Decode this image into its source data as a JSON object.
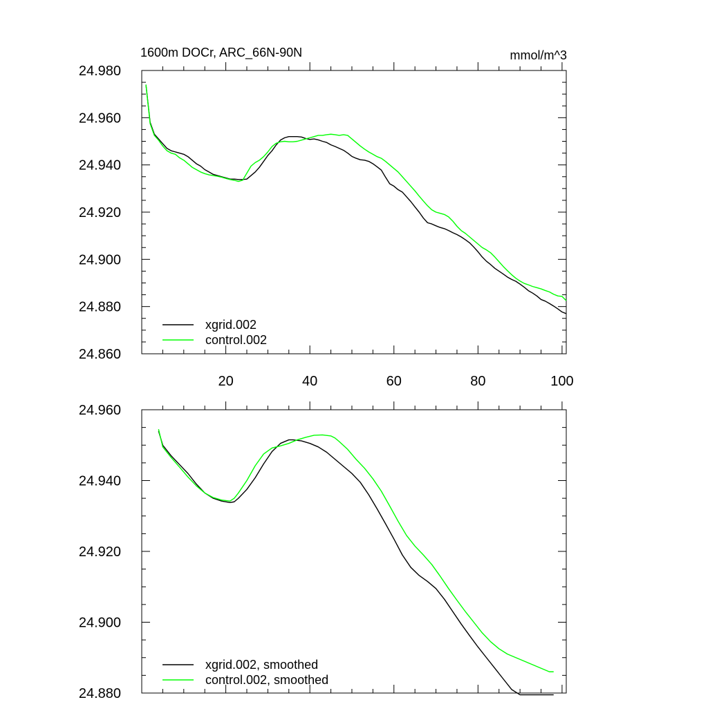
{
  "chart_data": [
    {
      "type": "line",
      "title": "1600m DOCr, ARC_66N-90N",
      "units": "mmol/m^3",
      "xlim": [
        0,
        101
      ],
      "ylim": [
        24.86,
        24.98
      ],
      "x_ticks": [
        20,
        40,
        60,
        80,
        100
      ],
      "y_ticks": [
        "24.860",
        "24.880",
        "24.900",
        "24.920",
        "24.940",
        "24.960",
        "24.980"
      ],
      "legend_position": "bottom-left",
      "series": [
        {
          "name": "xgrid.002",
          "color": "#000000",
          "x": [
            1,
            2,
            3,
            4,
            5,
            6,
            7,
            8,
            9,
            10,
            11,
            12,
            13,
            14,
            15,
            16,
            17,
            18,
            19,
            20,
            21,
            22,
            23,
            24,
            25,
            26,
            27,
            28,
            29,
            30,
            31,
            32,
            33,
            34,
            35,
            36,
            37,
            38,
            39,
            40,
            41,
            42,
            43,
            44,
            45,
            46,
            47,
            48,
            49,
            50,
            51,
            52,
            53,
            54,
            55,
            56,
            57,
            58,
            59,
            60,
            61,
            62,
            63,
            64,
            65,
            66,
            67,
            68,
            69,
            70,
            71,
            72,
            73,
            74,
            75,
            76,
            77,
            78,
            79,
            80,
            81,
            82,
            83,
            84,
            85,
            86,
            87,
            88,
            89,
            90,
            91,
            92,
            93,
            94,
            95,
            96,
            97,
            98,
            99,
            100,
            101
          ],
          "y": [
            24.974,
            24.958,
            24.953,
            24.951,
            24.949,
            24.947,
            24.946,
            24.9455,
            24.945,
            24.9445,
            24.9435,
            24.942,
            24.9405,
            24.9395,
            24.938,
            24.937,
            24.936,
            24.9355,
            24.935,
            24.9345,
            24.934,
            24.934,
            24.9338,
            24.9338,
            24.934,
            24.9355,
            24.937,
            24.939,
            24.9415,
            24.944,
            24.946,
            24.9485,
            24.9505,
            24.9515,
            24.952,
            24.952,
            24.952,
            24.9518,
            24.9512,
            24.9508,
            24.951,
            24.9506,
            24.95,
            24.9495,
            24.9485,
            24.9478,
            24.947,
            24.9462,
            24.945,
            24.9436,
            24.9428,
            24.9422,
            24.942,
            24.9415,
            24.9405,
            24.9392,
            24.9378,
            24.9348,
            24.932,
            24.931,
            24.9295,
            24.9285,
            24.9265,
            24.9245,
            24.9222,
            24.92,
            24.9175,
            24.9155,
            24.915,
            24.9142,
            24.9135,
            24.913,
            24.9122,
            24.9113,
            24.9105,
            24.9095,
            24.9083,
            24.907,
            24.9052,
            24.9032,
            24.901,
            24.8992,
            24.8978,
            24.8962,
            24.895,
            24.8938,
            24.8925,
            24.8915,
            24.8907,
            24.8895,
            24.8882,
            24.8867,
            24.8857,
            24.8845,
            24.883,
            24.8823,
            24.8813,
            24.8802,
            24.879,
            24.8777,
            24.877
          ]
        },
        {
          "name": "control.002",
          "color": "#00ff00",
          "x": [
            1,
            2,
            3,
            4,
            5,
            6,
            7,
            8,
            9,
            10,
            11,
            12,
            13,
            14,
            15,
            16,
            17,
            18,
            19,
            20,
            21,
            22,
            23,
            24,
            25,
            26,
            27,
            28,
            29,
            30,
            31,
            32,
            33,
            34,
            35,
            36,
            37,
            38,
            39,
            40,
            41,
            42,
            43,
            44,
            45,
            46,
            47,
            48,
            49,
            50,
            51,
            52,
            53,
            54,
            55,
            56,
            57,
            58,
            59,
            60,
            61,
            62,
            63,
            64,
            65,
            66,
            67,
            68,
            69,
            70,
            71,
            72,
            73,
            74,
            75,
            76,
            77,
            78,
            79,
            80,
            81,
            82,
            83,
            84,
            85,
            86,
            87,
            88,
            89,
            90,
            91,
            92,
            93,
            94,
            95,
            96,
            97,
            98,
            99,
            100,
            101
          ],
          "y": [
            24.974,
            24.9575,
            24.9525,
            24.9505,
            24.948,
            24.946,
            24.945,
            24.9445,
            24.943,
            24.942,
            24.9405,
            24.939,
            24.938,
            24.937,
            24.9363,
            24.9358,
            24.9355,
            24.9352,
            24.9348,
            24.9343,
            24.9338,
            24.9335,
            24.933,
            24.9335,
            24.9365,
            24.9395,
            24.941,
            24.942,
            24.9435,
            24.9455,
            24.9478,
            24.9492,
            24.9498,
            24.95,
            24.9498,
            24.9498,
            24.95,
            24.9505,
            24.951,
            24.9515,
            24.952,
            24.9525,
            24.9525,
            24.9528,
            24.953,
            24.9528,
            24.9525,
            24.9528,
            24.9525,
            24.951,
            24.9495,
            24.948,
            24.9467,
            24.9455,
            24.9445,
            24.9435,
            24.9428,
            24.9415,
            24.94,
            24.9385,
            24.937,
            24.935,
            24.933,
            24.931,
            24.929,
            24.9268,
            24.9247,
            24.9227,
            24.921,
            24.92,
            24.9195,
            24.919,
            24.918,
            24.9162,
            24.914,
            24.9122,
            24.911,
            24.9095,
            24.908,
            24.9065,
            24.905,
            24.904,
            24.9028,
            24.901,
            24.899,
            24.897,
            24.8952,
            24.8935,
            24.892,
            24.8908,
            24.8898,
            24.8892,
            24.8885,
            24.888,
            24.8875,
            24.8868,
            24.8862,
            24.8852,
            24.8845,
            24.8843,
            24.8825
          ]
        }
      ]
    },
    {
      "type": "line",
      "title": "",
      "xlim": [
        0,
        101
      ],
      "ylim": [
        24.88,
        24.96
      ],
      "x_ticks": [
        20,
        40,
        60,
        80,
        100
      ],
      "y_ticks": [
        "24.880",
        "24.900",
        "24.920",
        "24.940",
        "24.960"
      ],
      "legend_position": "bottom-left",
      "series": [
        {
          "name": "xgrid.002, smoothed",
          "color": "#000000",
          "x": [
            4,
            5,
            7,
            9,
            11,
            13,
            15,
            17,
            19,
            21,
            22,
            23,
            25,
            27,
            29,
            31,
            33,
            35,
            36,
            38,
            40,
            42,
            44,
            46,
            48,
            50,
            52,
            54,
            56,
            58,
            60,
            62,
            64,
            66,
            68,
            70,
            72,
            74,
            76,
            78,
            80,
            82,
            84,
            86,
            88,
            90,
            92,
            94,
            96,
            98
          ],
          "y": [
            24.954,
            24.95,
            24.947,
            24.9445,
            24.942,
            24.939,
            24.9365,
            24.935,
            24.9342,
            24.9338,
            24.934,
            24.935,
            24.9375,
            24.9408,
            24.9447,
            24.9482,
            24.9505,
            24.9515,
            24.9515,
            24.9512,
            24.9505,
            24.9495,
            24.948,
            24.946,
            24.944,
            24.942,
            24.9395,
            24.936,
            24.932,
            24.9278,
            24.9235,
            24.919,
            24.9155,
            24.9132,
            24.9115,
            24.9095,
            24.9065,
            24.903,
            24.8995,
            24.8962,
            24.893,
            24.89,
            24.887,
            24.884,
            24.881,
            24.8795,
            24.8795,
            24.8795,
            24.8795,
            24.8795
          ]
        },
        {
          "name": "control.002, smoothed",
          "color": "#00ff00",
          "x": [
            4,
            5,
            7,
            9,
            11,
            13,
            15,
            17,
            19,
            21,
            22,
            23,
            25,
            27,
            29,
            31,
            33,
            35,
            37,
            39,
            41,
            43,
            45,
            46,
            47,
            49,
            51,
            53,
            55,
            57,
            59,
            61,
            63,
            65,
            67,
            69,
            71,
            73,
            75,
            77,
            79,
            81,
            83,
            85,
            87,
            89,
            91,
            93,
            95,
            97,
            98
          ],
          "y": [
            24.9545,
            24.9495,
            24.9465,
            24.9438,
            24.941,
            24.9385,
            24.9365,
            24.9352,
            24.9345,
            24.9342,
            24.935,
            24.9365,
            24.94,
            24.9442,
            24.9475,
            24.9492,
            24.9498,
            24.9505,
            24.9515,
            24.9522,
            24.9528,
            24.9529,
            24.9526,
            24.952,
            24.951,
            24.9488,
            24.946,
            24.9435,
            24.9405,
            24.937,
            24.9328,
            24.9285,
            24.9245,
            24.9215,
            24.919,
            24.9163,
            24.913,
            24.9095,
            24.9062,
            24.903,
            24.9,
            24.897,
            24.8945,
            24.8925,
            24.891,
            24.89,
            24.889,
            24.888,
            24.887,
            24.886,
            24.886
          ]
        }
      ]
    }
  ]
}
